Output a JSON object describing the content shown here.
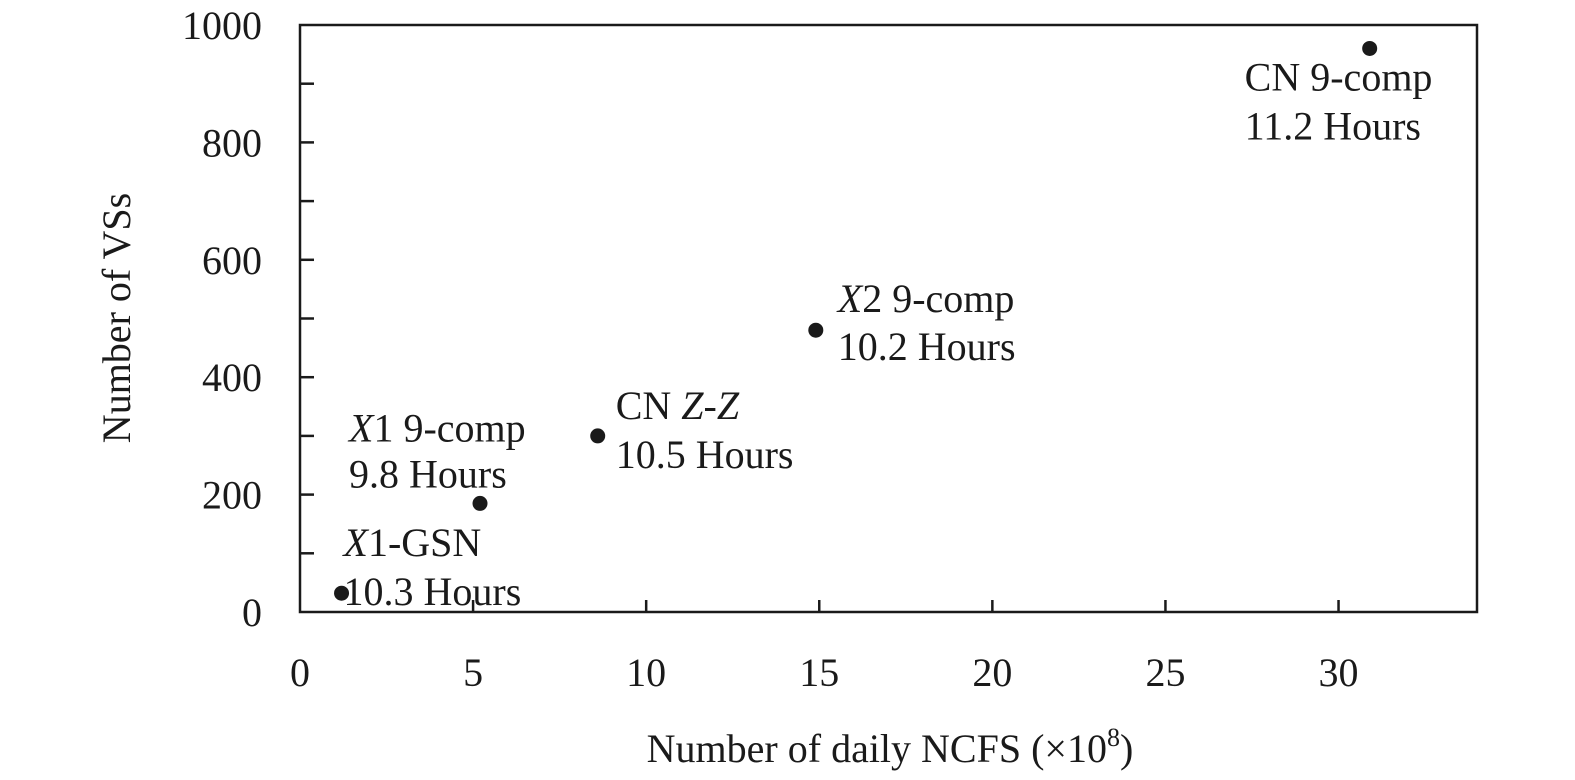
{
  "chart_data": {
    "type": "scatter",
    "title": "",
    "xlabel": "Number of daily NCFS (×10",
    "xlabel_sup": "8",
    "xlabel_end": ")",
    "ylabel": "Number of  VSs",
    "xlim": [
      0,
      34
    ],
    "ylim": [
      0,
      1000
    ],
    "x_ticks": [
      0,
      5,
      10,
      15,
      20,
      25,
      30
    ],
    "y_ticks": [
      0,
      200,
      400,
      600,
      800,
      1000
    ],
    "x_tick_labels": [
      "0",
      "5",
      "10",
      "15",
      "20",
      "25",
      "30"
    ],
    "y_tick_labels": [
      "0",
      "200",
      "400",
      "600",
      "800",
      "1000"
    ],
    "grid": false,
    "legend": "none",
    "points": [
      {
        "x": 1.2,
        "y": 32,
        "label_italic": "X",
        "label_rest": "1-GSN",
        "hours": "10.3 Hours"
      },
      {
        "x": 5.2,
        "y": 185,
        "label_italic": "X",
        "label_rest": "1 9-comp",
        "hours": "9.8 Hours"
      },
      {
        "x": 8.6,
        "y": 300,
        "label_prefix": "CN ",
        "label_italic": "Z-Z",
        "label_rest": "",
        "hours": "10.5 Hours"
      },
      {
        "x": 14.9,
        "y": 480,
        "label_italic": "X",
        "label_rest": "2 9-comp",
        "hours": "10.2 Hours"
      },
      {
        "x": 30.9,
        "y": 960,
        "label_prefix": "CN 9-comp",
        "label_italic": "",
        "label_rest": "",
        "hours": "11.2 Hours"
      }
    ]
  }
}
